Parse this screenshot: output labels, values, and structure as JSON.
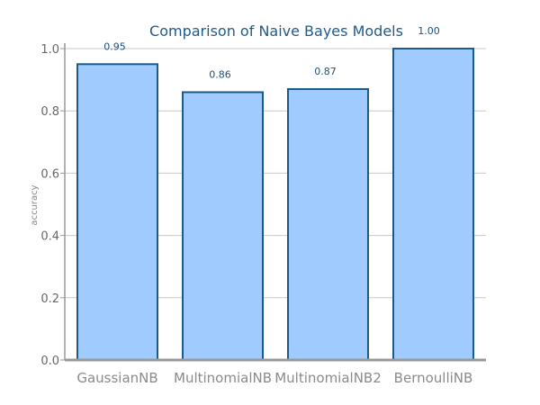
{
  "chart_data": {
    "type": "bar",
    "title": "Comparison of Naive Bayes Models",
    "xlabel": "",
    "ylabel": "accuracy",
    "categories": [
      "GaussianNB",
      "MultinomialNB",
      "MultinomialNB2",
      "BernoulliNB"
    ],
    "values": [
      0.95,
      0.86,
      0.87,
      1.0
    ],
    "value_labels": [
      "0.95",
      "0.86",
      "0.87",
      "1.00"
    ],
    "yticks": [
      "0.0",
      "0.2",
      "0.4",
      "0.6",
      "0.8",
      "1.0"
    ],
    "ylim": [
      0,
      1.0
    ],
    "grid": true,
    "colors": {
      "bar_fill": "#9fcbff",
      "bar_edge": "#1c5a8c",
      "grid": "#c8c8c8",
      "axis": "#999999"
    }
  }
}
